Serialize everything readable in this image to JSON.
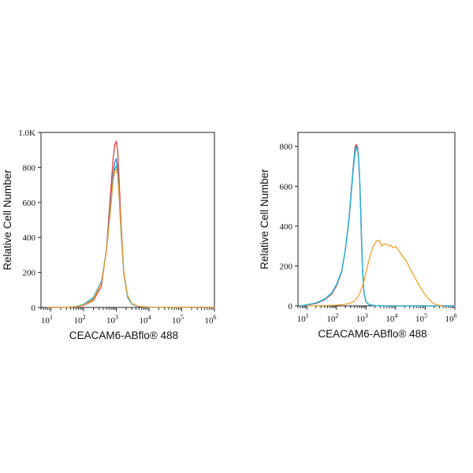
{
  "chart_data": [
    {
      "type": "line",
      "xlabel": "CEACAM6-ABflo® 488",
      "ylabel": "Relative Cell Number",
      "xscale": "log",
      "xlim": [
        5,
        1000000
      ],
      "ylim": [
        0,
        1000
      ],
      "x_ticks": [
        {
          "value": 10,
          "base": "10",
          "exp": "1"
        },
        {
          "value": 100,
          "base": "10",
          "exp": "2"
        },
        {
          "value": 1000,
          "base": "10",
          "exp": "3"
        },
        {
          "value": 10000,
          "base": "10",
          "exp": "4"
        },
        {
          "value": 100000,
          "base": "10",
          "exp": "5"
        },
        {
          "value": 1000000,
          "base": "10",
          "exp": "6"
        }
      ],
      "y_ticks": [
        {
          "value": 0,
          "label": "0"
        },
        {
          "value": 200,
          "label": "200"
        },
        {
          "value": 400,
          "label": "400"
        },
        {
          "value": 600,
          "label": "600"
        },
        {
          "value": 800,
          "label": "800"
        },
        {
          "value": 1000,
          "label": "1.0K"
        }
      ],
      "grid": false,
      "series": [
        {
          "color": "#e8403a",
          "x": [
            8,
            30,
            60,
            100,
            200,
            350,
            500,
            650,
            800,
            900,
            1000,
            1100,
            1200,
            1400,
            1700,
            2200,
            3000,
            5000,
            10000,
            100000,
            1000000
          ],
          "y": [
            0,
            1,
            4,
            12,
            40,
            120,
            330,
            620,
            850,
            930,
            950,
            900,
            760,
            480,
            200,
            70,
            20,
            6,
            2,
            1,
            0
          ]
        },
        {
          "color": "#3f7fd0",
          "x": [
            8,
            30,
            60,
            100,
            200,
            350,
            500,
            650,
            800,
            900,
            1000,
            1100,
            1200,
            1400,
            1700,
            2200,
            3000,
            5000,
            10000,
            100000,
            1000000
          ],
          "y": [
            0,
            1,
            5,
            15,
            50,
            140,
            330,
            570,
            760,
            830,
            850,
            800,
            680,
            430,
            190,
            60,
            18,
            5,
            2,
            1,
            0
          ]
        },
        {
          "color": "#2ab8d8",
          "x": [
            8,
            30,
            60,
            100,
            200,
            350,
            500,
            650,
            800,
            900,
            1000,
            1100,
            1200,
            1400,
            1700,
            2200,
            3000,
            5000,
            10000,
            100000,
            1000000
          ],
          "y": [
            0,
            1,
            6,
            18,
            58,
            150,
            320,
            530,
            720,
            790,
            810,
            770,
            650,
            420,
            190,
            60,
            18,
            5,
            2,
            1,
            0
          ]
        },
        {
          "color": "#f0a030",
          "x": [
            8,
            30,
            60,
            100,
            200,
            350,
            500,
            650,
            800,
            900,
            1000,
            1100,
            1200,
            1400,
            1700,
            2200,
            3000,
            5000,
            10000,
            100000,
            1000000
          ],
          "y": [
            0,
            1,
            4,
            14,
            48,
            140,
            320,
            540,
            730,
            780,
            790,
            760,
            660,
            440,
            200,
            70,
            22,
            6,
            2,
            1,
            0
          ]
        }
      ]
    },
    {
      "type": "line",
      "xlabel": "CEACAM6-ABflo® 488",
      "ylabel": "Relative Cell Number",
      "xscale": "log",
      "xlim": [
        5,
        1000000
      ],
      "ylim": [
        0,
        870
      ],
      "x_ticks": [
        {
          "value": 10,
          "base": "10",
          "exp": "1"
        },
        {
          "value": 100,
          "base": "10",
          "exp": "2"
        },
        {
          "value": 1000,
          "base": "10",
          "exp": "3"
        },
        {
          "value": 10000,
          "base": "10",
          "exp": "4"
        },
        {
          "value": 100000,
          "base": "10",
          "exp": "5"
        },
        {
          "value": 1000000,
          "base": "10",
          "exp": "6"
        }
      ],
      "y_ticks": [
        {
          "value": 0,
          "label": "0"
        },
        {
          "value": 200,
          "label": "200"
        },
        {
          "value": 400,
          "label": "400"
        },
        {
          "value": 600,
          "label": "600"
        },
        {
          "value": 800,
          "label": "800"
        }
      ],
      "grid": false,
      "series": [
        {
          "color": "#e8403a",
          "x": [
            6,
            10,
            20,
            40,
            70,
            100,
            150,
            200,
            260,
            320,
            380,
            430,
            480,
            520,
            560,
            600,
            650,
            700,
            760,
            850,
            1000,
            1300,
            2000,
            5000,
            1000000
          ],
          "y": [
            0,
            4,
            12,
            30,
            60,
            100,
            170,
            280,
            420,
            580,
            720,
            800,
            810,
            790,
            740,
            650,
            500,
            330,
            180,
            70,
            20,
            5,
            1,
            0,
            0
          ]
        },
        {
          "color": "#3f7fd0",
          "x": [
            6,
            10,
            20,
            40,
            70,
            100,
            150,
            200,
            260,
            320,
            380,
            430,
            480,
            520,
            560,
            600,
            650,
            700,
            760,
            850,
            1000,
            1300,
            2000,
            5000,
            1000000
          ],
          "y": [
            0,
            5,
            14,
            32,
            64,
            105,
            175,
            285,
            430,
            590,
            720,
            790,
            800,
            780,
            730,
            640,
            490,
            320,
            170,
            65,
            18,
            5,
            1,
            0,
            0
          ]
        },
        {
          "color": "#2ab8d8",
          "x": [
            6,
            10,
            20,
            40,
            70,
            100,
            150,
            200,
            260,
            320,
            380,
            430,
            480,
            520,
            560,
            600,
            650,
            700,
            760,
            850,
            1000,
            1300,
            2000,
            5000,
            1000000
          ],
          "y": [
            0,
            5,
            15,
            34,
            66,
            108,
            175,
            280,
            420,
            570,
            700,
            770,
            790,
            780,
            740,
            660,
            520,
            350,
            190,
            70,
            20,
            5,
            1,
            0,
            0
          ]
        },
        {
          "color": "#f0a030",
          "x": [
            10,
            50,
            100,
            200,
            300,
            400,
            500,
            600,
            800,
            1000,
            1300,
            1700,
            2200,
            2800,
            3300,
            4000,
            5000,
            6000,
            7000,
            8000,
            10000,
            13000,
            17000,
            22000,
            30000,
            45000,
            70000,
            100000,
            150000,
            200000,
            300000,
            400000
          ],
          "y": [
            0,
            2,
            4,
            8,
            14,
            24,
            40,
            60,
            110,
            170,
            240,
            295,
            325,
            330,
            300,
            310,
            310,
            300,
            305,
            290,
            300,
            275,
            250,
            230,
            190,
            140,
            90,
            55,
            25,
            10,
            2,
            0
          ]
        }
      ]
    }
  ]
}
